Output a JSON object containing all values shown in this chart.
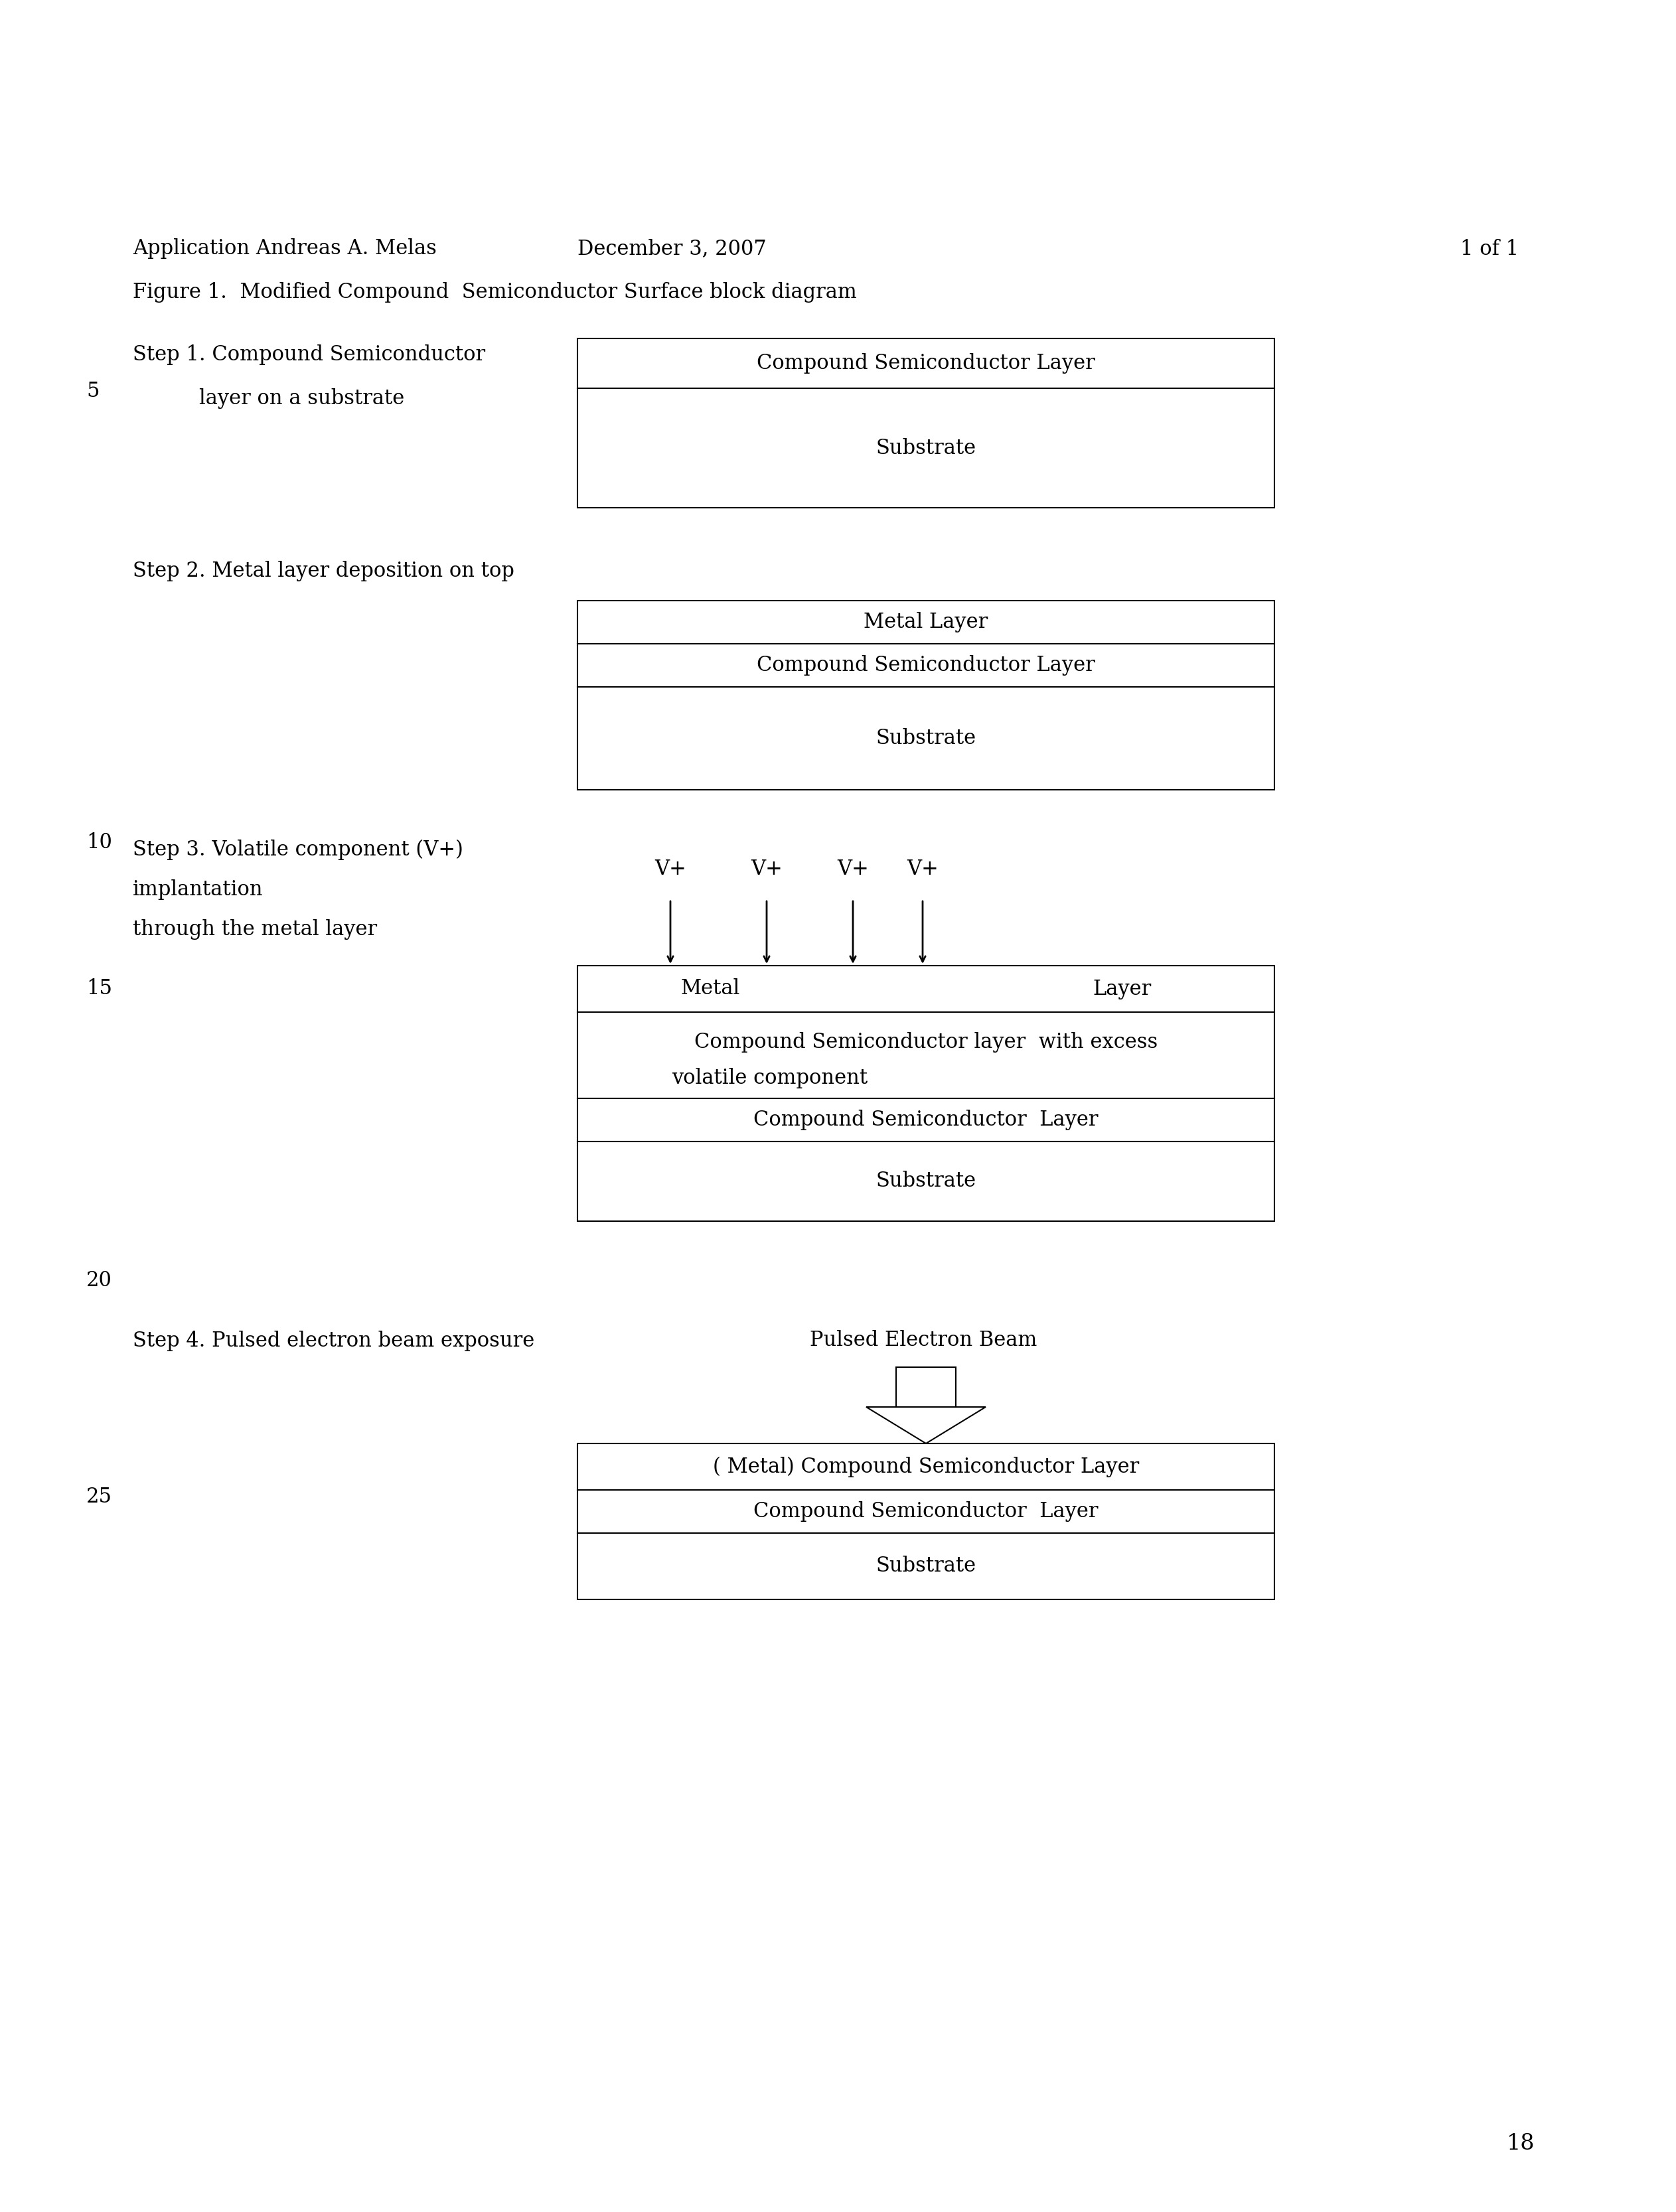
{
  "title_line1": "Application Andreas A. Melas",
  "title_date": "December 3, 2007",
  "title_page": "1 of 1",
  "figure_title": "Figure 1.  Modified Compound  Semiconductor Surface block diagram",
  "bg_color": "#ffffff",
  "text_color": "#000000",
  "box_edge_color": "#000000",
  "step1_label_line1": "Step 1. Compound Semiconductor",
  "step1_label_line2": "layer on a substrate",
  "step1_num": "5",
  "step1_layers": [
    "Compound Semiconductor Layer",
    "Substrate"
  ],
  "step2_label": "Step 2. Metal layer deposition on top",
  "step2_num": "10",
  "step2_layers": [
    "Metal Layer",
    "Compound Semiconductor Layer",
    "Substrate"
  ],
  "step3_label_line1": "Step 3. Volatile component (V+)",
  "step3_label_line2": "implantation",
  "step3_label_line3": "through the metal layer",
  "step3_num": "15",
  "step3_vplus_labels": [
    "V+",
    "V+",
    "V+",
    "V+"
  ],
  "step3_metal_left": "Metal",
  "step3_metal_right": "Layer",
  "step3_cs_excess_line1": "Compound Semiconductor layer  with excess",
  "step3_cs_excess_line2": "volatile component",
  "step3_cs_layer": "Compound Semiconductor  Layer",
  "step3_substrate": "Substrate",
  "step3_num2": "20",
  "step4_label": "Step 4. Pulsed electron beam exposure",
  "step4_beam_label": "Pulsed Electron Beam",
  "step4_num": "25",
  "step4_layers": [
    "( Metal) Compound Semiconductor Layer",
    "Compound Semiconductor  Layer",
    "Substrate"
  ],
  "page_num": "18",
  "font_family": "DejaVu Serif"
}
